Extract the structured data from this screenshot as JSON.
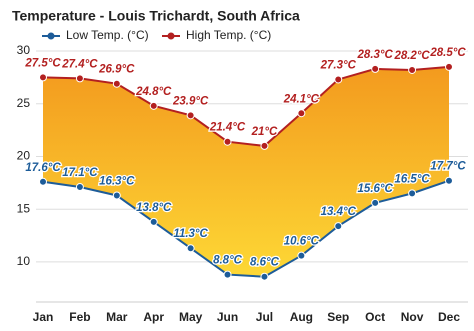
{
  "chart_data": {
    "type": "line",
    "title": "Temperature - Louis Trichardt, South Africa",
    "categories": [
      "Jan",
      "Feb",
      "Mar",
      "Apr",
      "May",
      "Jun",
      "Jul",
      "Aug",
      "Sep",
      "Oct",
      "Nov",
      "Dec"
    ],
    "series": [
      {
        "name": "Low Temp. (°C)",
        "color": "#1d5c99",
        "values": [
          17.6,
          17.1,
          16.3,
          13.8,
          11.3,
          8.8,
          8.6,
          10.6,
          13.4,
          15.6,
          16.5,
          17.7
        ],
        "value_labels": [
          "17.6°C",
          "17.1°C",
          "16.3°C",
          "13.8°C",
          "11.3°C",
          "8.8°C",
          "8.6°C",
          "10.6°C",
          "13.4°C",
          "15.6°C",
          "16.5°C",
          "17.7°C"
        ]
      },
      {
        "name": "High Temp. (°C)",
        "color": "#b32020",
        "values": [
          27.5,
          27.4,
          26.9,
          24.8,
          23.9,
          21.4,
          21,
          24.1,
          27.3,
          28.3,
          28.2,
          28.5
        ],
        "value_labels": [
          "27.5°C",
          "27.4°C",
          "26.9°C",
          "24.8°C",
          "23.9°C",
          "21.4°C",
          "21°C",
          "24.1°C",
          "27.3°C",
          "28.3°C",
          "28.2°C",
          "28.5°C"
        ]
      }
    ],
    "ylim": [
      6.2,
      30
    ],
    "yticks": [
      10,
      15,
      20,
      25,
      30
    ],
    "grid": true
  }
}
